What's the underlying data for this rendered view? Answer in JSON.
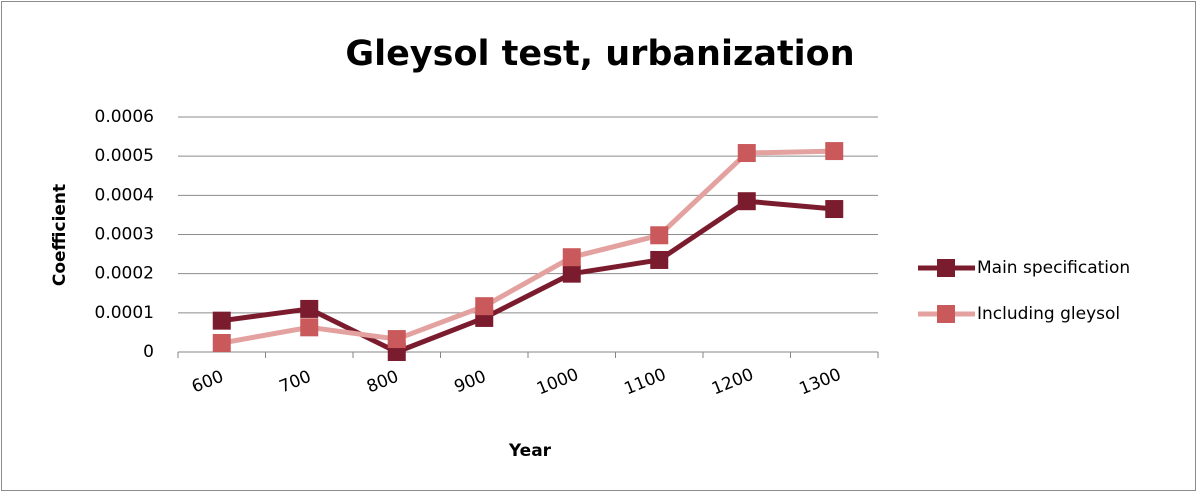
{
  "chart_data": {
    "type": "line",
    "title": "Gleysol test, urbanization",
    "x_label": "Year",
    "y_label": "Coefficient",
    "categories": [
      "600",
      "700",
      "800",
      "900",
      "1000",
      "1100",
      "1200",
      "1300"
    ],
    "series": [
      {
        "name": "Main specification",
        "color": "#7b1c2e",
        "marker_color": "#7b1c2e",
        "values": [
          8e-05,
          0.00011,
          0,
          8.7e-05,
          0.0002,
          0.000235,
          0.000385,
          0.000365
        ]
      },
      {
        "name": "Including gleysol",
        "color": "#e3a19f",
        "marker_color": "#c9595a",
        "values": [
          2.3e-05,
          6.3e-05,
          3.3e-05,
          0.000117,
          0.000242,
          0.000298,
          0.000508,
          0.000513
        ]
      }
    ],
    "ylim": [
      0,
      0.0006
    ],
    "yticks": [
      0,
      0.0001,
      0.0002,
      0.0003,
      0.0004,
      0.0005,
      0.0006
    ],
    "grid": true,
    "legend": "right"
  }
}
